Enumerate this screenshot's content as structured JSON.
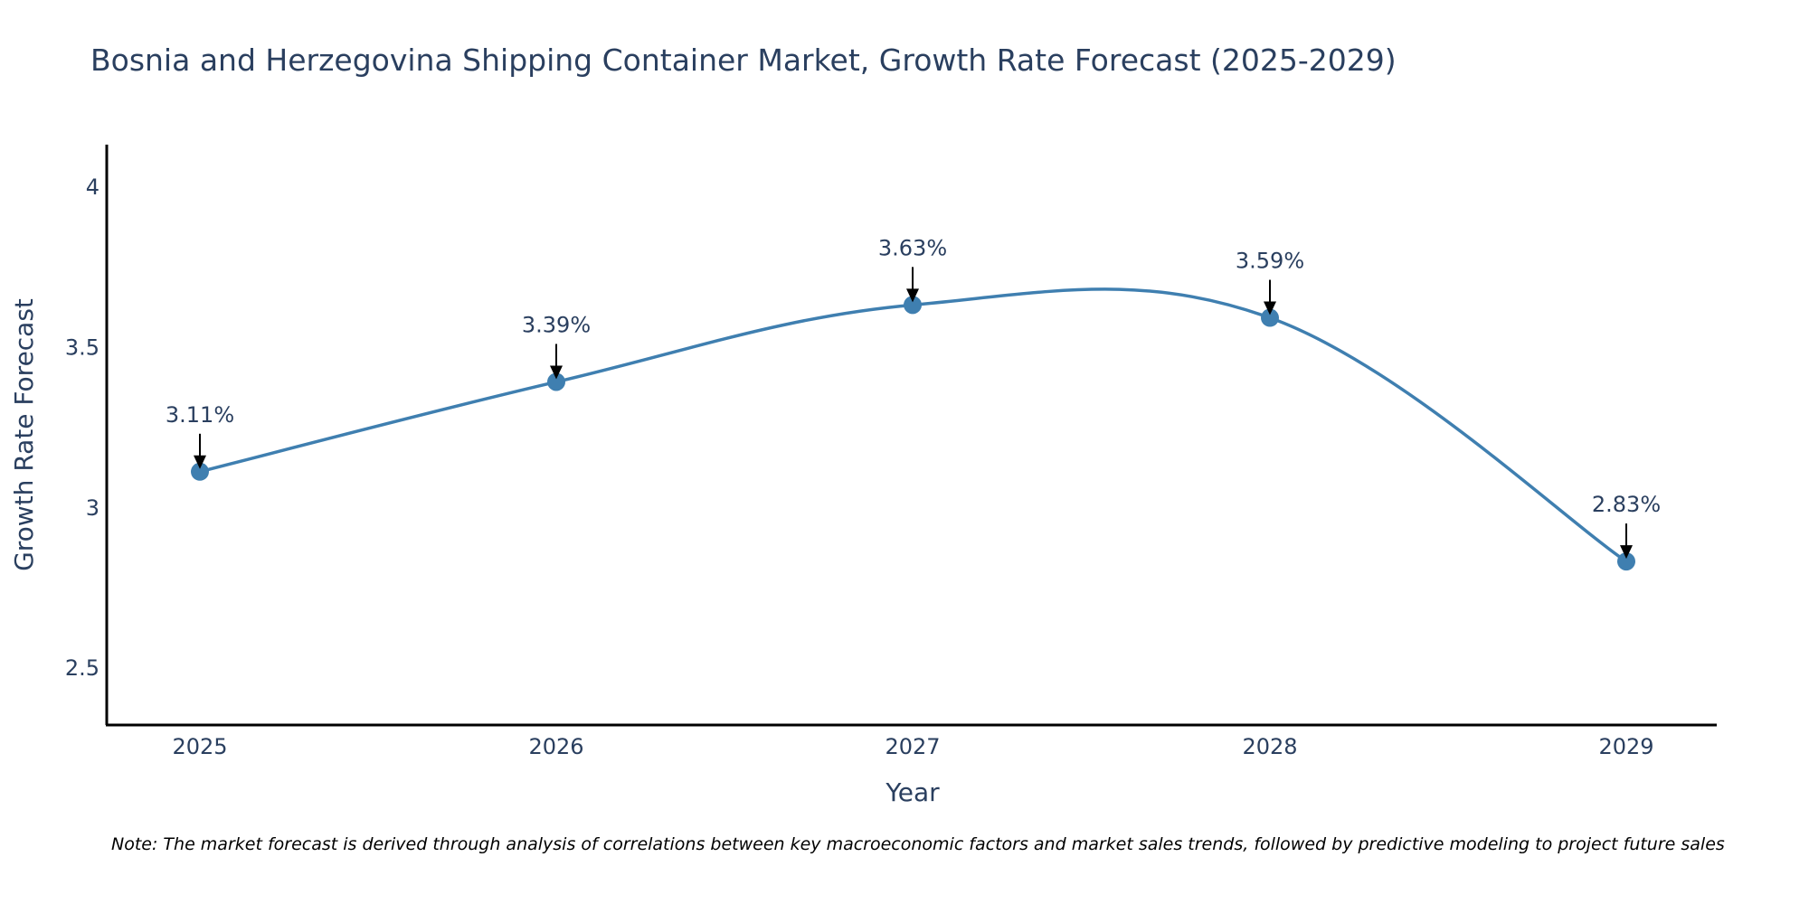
{
  "chart_data": {
    "type": "line",
    "title": "Bosnia and Herzegovina Shipping Container Market, Growth Rate Forecast (2025-2029)",
    "xlabel": "Year",
    "ylabel": "Growth Rate Forecast",
    "categories": [
      "2025",
      "2026",
      "2027",
      "2028",
      "2029"
    ],
    "values": [
      3.11,
      3.39,
      3.63,
      3.59,
      2.83
    ],
    "data_labels": [
      "3.11%",
      "3.39%",
      "3.63%",
      "3.59%",
      "2.83%"
    ],
    "ylim": [
      2.32,
      4.13
    ],
    "yticks": [
      2.5,
      3,
      3.5,
      4
    ],
    "ytick_labels": [
      "2.5",
      "3",
      "3.5",
      "4"
    ],
    "line_shape": "spline",
    "grid": false,
    "legend": "none",
    "colors": {
      "line": "#3f7fb0",
      "marker": "#3f7fb0",
      "text": "#2a3f5f",
      "axis": "#000000",
      "arrow": "#000000"
    },
    "note": "Note: The market forecast is derived through analysis of correlations between key macroeconomic factors and market sales trends, followed by predictive modeling to project future sales"
  }
}
